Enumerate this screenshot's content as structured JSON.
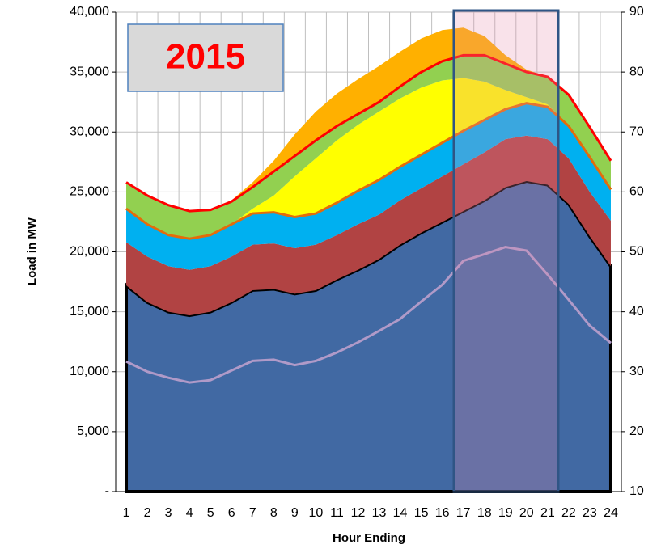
{
  "chart_data": {
    "type": "stacked_area",
    "title": "2015",
    "x_label": "Hour Ending",
    "y_label": "Load in MW",
    "categories": [
      1,
      2,
      3,
      4,
      5,
      6,
      7,
      8,
      9,
      10,
      11,
      12,
      13,
      14,
      15,
      16,
      17,
      18,
      19,
      20,
      21,
      22,
      23,
      24
    ],
    "ylim": [
      0,
      40000
    ],
    "yticks": [
      {
        "value": 0,
        "label": "-"
      },
      {
        "value": 5000,
        "label": "5,000"
      },
      {
        "value": 10000,
        "label": "10,000"
      },
      {
        "value": 15000,
        "label": "15,000"
      },
      {
        "value": 20000,
        "label": "20,000"
      },
      {
        "value": 25000,
        "label": "25,000"
      },
      {
        "value": 30000,
        "label": "30,000"
      },
      {
        "value": 35000,
        "label": "35,000"
      },
      {
        "value": 40000,
        "label": "40,000"
      }
    ],
    "y2lim": [
      10,
      90
    ],
    "y2ticks": [
      10,
      20,
      30,
      40,
      50,
      60,
      70,
      80,
      90
    ],
    "grid": true,
    "series": [
      {
        "color": "#4169a3",
        "edge_color": "#000000",
        "values": [
          17200,
          15800,
          15000,
          14700,
          15000,
          15800,
          16800,
          16900,
          16500,
          16800,
          17700,
          18500,
          19400,
          20600,
          21600,
          22500,
          23400,
          24300,
          25400,
          25900,
          25600,
          24000,
          21300,
          18800
        ]
      },
      {
        "color": "#b14343",
        "values": [
          3600,
          3800,
          3800,
          3800,
          3800,
          3800,
          3800,
          3800,
          3800,
          3800,
          3700,
          3800,
          3700,
          3700,
          3700,
          3800,
          3900,
          4000,
          4000,
          3800,
          3800,
          3800,
          3700,
          3800
        ]
      },
      {
        "color": "#00b0f0",
        "edge_color": "#e46c0a",
        "values": [
          2800,
          2700,
          2600,
          2600,
          2600,
          2700,
          2600,
          2600,
          2600,
          2600,
          2700,
          2800,
          2900,
          2800,
          2800,
          2800,
          2800,
          2700,
          2500,
          2700,
          2700,
          2700,
          2900,
          2600
        ]
      },
      {
        "color": "#ffff00",
        "values": [
          0,
          0,
          0,
          0,
          0,
          0,
          400,
          1400,
          3400,
          4600,
          5200,
          5500,
          5700,
          5700,
          5600,
          5200,
          4400,
          3200,
          1600,
          500,
          200,
          0,
          0,
          0
        ]
      },
      {
        "color": "#92d050",
        "edge_color": "#ff0000",
        "values": [
          2200,
          2400,
          2500,
          2300,
          2100,
          1900,
          1800,
          2000,
          1700,
          1500,
          1200,
          900,
          800,
          1000,
          1300,
          1600,
          1900,
          2200,
          2200,
          2100,
          2300,
          2600,
          2500,
          2400
        ]
      },
      {
        "color": "#ffb000",
        "values": [
          0,
          0,
          0,
          0,
          0,
          100,
          400,
          900,
          1800,
          2400,
          2700,
          2900,
          3000,
          2900,
          2800,
          2600,
          2300,
          1600,
          700,
          200,
          0,
          0,
          0,
          0
        ]
      },
      {
        "color": "#b09ac8",
        "axis": "y2",
        "type": "line",
        "values": [
          31.7,
          30,
          29,
          28.2,
          28.6,
          30.2,
          31.8,
          32,
          31.1,
          31.8,
          33.2,
          34.9,
          36.8,
          38.8,
          41.7,
          44.5,
          48.5,
          49.6,
          50.8,
          50.2,
          46.2,
          42,
          37.7,
          34.8
        ]
      }
    ]
  }
}
